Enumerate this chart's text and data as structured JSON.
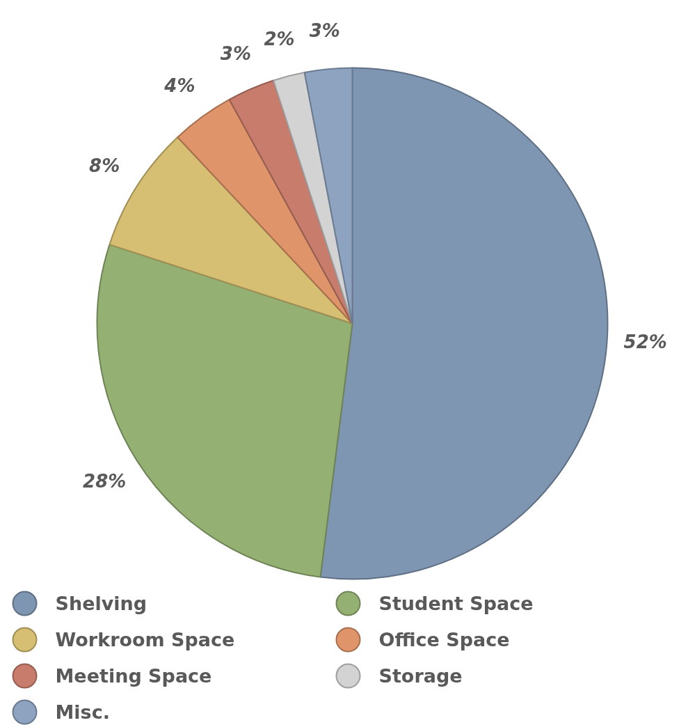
{
  "chart_data": {
    "type": "pie",
    "categories": [
      "Shelving",
      "Student Space",
      "Workroom Space",
      "Office Space",
      "Meeting Space",
      "Storage",
      "Misc."
    ],
    "values": [
      52,
      28,
      8,
      4,
      3,
      2,
      3
    ],
    "colors": [
      "#7f96b2",
      "#94b173",
      "#d6bf72",
      "#e0946a",
      "#c87c6c",
      "#d3d3d3",
      "#8ea3c0"
    ],
    "value_labels": [
      "52%",
      "28%",
      "8%",
      "4%",
      "3%",
      "2%",
      "3%"
    ],
    "legend": "bottom"
  }
}
